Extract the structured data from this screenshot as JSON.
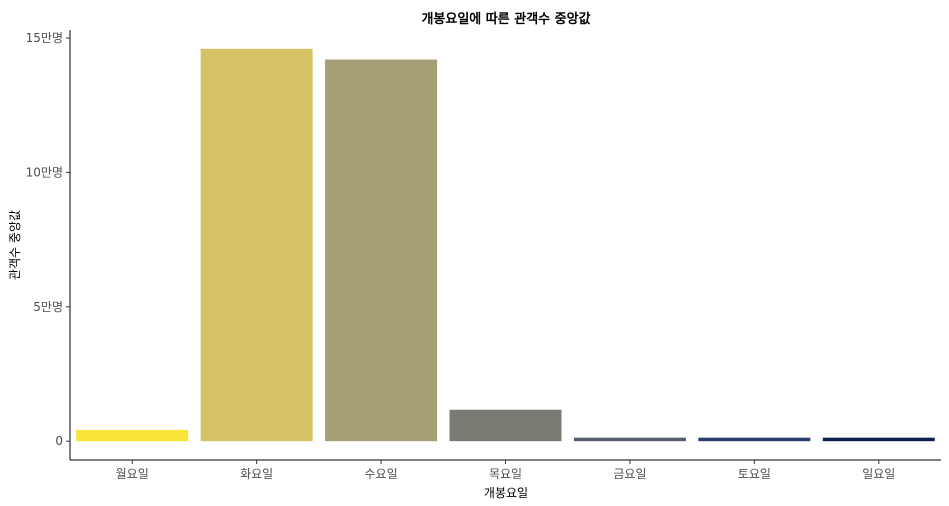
{
  "chart_data": {
    "type": "bar",
    "title": "개봉요일에 따른 관객수 중앙값",
    "xlabel": "개봉요일",
    "ylabel": "관객수 중앙값",
    "categories": [
      "월요일",
      "화요일",
      "수요일",
      "목요일",
      "금요일",
      "토요일",
      "일요일"
    ],
    "values": [
      4200,
      146000,
      142000,
      11700,
      1300,
      1300,
      1300
    ],
    "colors": [
      "#f9e43a",
      "#d4c264",
      "#a59d73",
      "#7b7a72",
      "#555c6e",
      "#273d6b",
      "#0b224f"
    ],
    "ylim": [
      -7000,
      153000
    ],
    "yticks": [
      0,
      50000,
      100000,
      150000
    ],
    "ytick_labels": [
      "0",
      "5만명",
      "10만명",
      "15만명"
    ],
    "grid": false,
    "legend": "none"
  }
}
